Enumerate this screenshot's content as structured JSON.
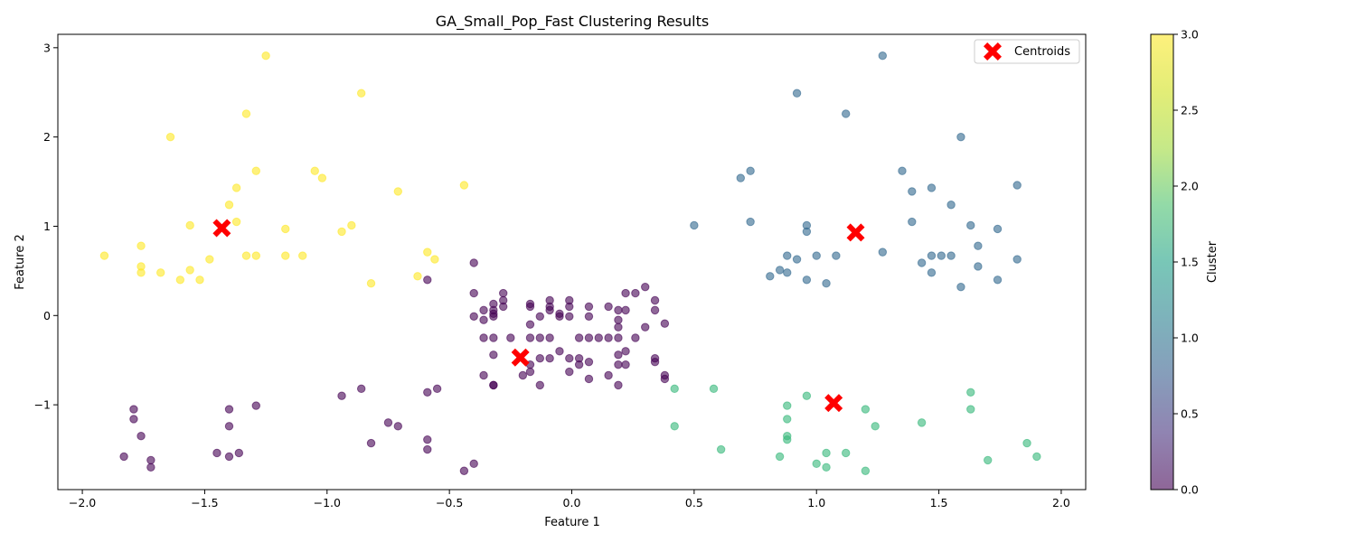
{
  "chart_data": {
    "type": "scatter",
    "title": "GA_Small_Pop_Fast Clustering Results",
    "xlabel": "Feature 1",
    "ylabel": "Feature 2",
    "xlim": [
      -2.1,
      2.1
    ],
    "ylim": [
      -1.95,
      3.15
    ],
    "xticks": [
      -2.0,
      -1.5,
      -1.0,
      -0.5,
      0.0,
      0.5,
      1.0,
      1.5,
      2.0
    ],
    "xtick_labels": [
      "−2.0",
      "−1.5",
      "−1.0",
      "−0.5",
      "0.0",
      "0.5",
      "1.0",
      "1.5",
      "2.0"
    ],
    "yticks": [
      -1,
      0,
      1,
      2,
      3
    ],
    "ytick_labels": [
      "−1",
      "0",
      "1",
      "2",
      "3"
    ],
    "grid": false,
    "legend": {
      "position": "top-right",
      "entries": [
        "Centroids"
      ]
    },
    "colorbar": {
      "label": "Cluster",
      "range": [
        0.0,
        3.0
      ],
      "ticks": [
        0.0,
        0.5,
        1.0,
        1.5,
        2.0,
        2.5,
        3.0
      ],
      "tick_labels": [
        "0.0",
        "0.5",
        "1.0",
        "1.5",
        "2.0",
        "2.5",
        "3.0"
      ],
      "colormap": "viridis"
    },
    "cluster_colors": {
      "0": "#440154",
      "1": "#31688e",
      "2": "#35b779",
      "3": "#fde725"
    },
    "centroid_color": "#ff0000",
    "centroids": [
      {
        "x": -1.43,
        "y": 0.98
      },
      {
        "x": 1.16,
        "y": 0.93
      },
      {
        "x": 1.07,
        "y": -0.98
      },
      {
        "x": -0.21,
        "y": -0.47
      }
    ],
    "series": [
      {
        "cluster": 3,
        "points": [
          [
            -1.25,
            2.91
          ],
          [
            -0.86,
            2.49
          ],
          [
            -1.33,
            2.26
          ],
          [
            -1.64,
            2.0
          ],
          [
            -1.29,
            1.62
          ],
          [
            -1.05,
            1.62
          ],
          [
            -1.02,
            1.54
          ],
          [
            -0.44,
            1.46
          ],
          [
            -1.37,
            1.43
          ],
          [
            -0.71,
            1.39
          ],
          [
            -1.4,
            1.24
          ],
          [
            -1.56,
            1.01
          ],
          [
            -1.37,
            1.05
          ],
          [
            -0.9,
            1.01
          ],
          [
            -1.17,
            0.97
          ],
          [
            -0.94,
            0.94
          ],
          [
            -1.76,
            0.78
          ],
          [
            -1.91,
            0.67
          ],
          [
            -1.33,
            0.67
          ],
          [
            -1.29,
            0.67
          ],
          [
            -1.17,
            0.67
          ],
          [
            -1.1,
            0.67
          ],
          [
            -1.48,
            0.63
          ],
          [
            -0.59,
            0.71
          ],
          [
            -0.56,
            0.63
          ],
          [
            -1.76,
            0.55
          ],
          [
            -1.76,
            0.48
          ],
          [
            -1.68,
            0.48
          ],
          [
            -1.56,
            0.51
          ],
          [
            -1.6,
            0.4
          ],
          [
            -1.52,
            0.4
          ],
          [
            -0.63,
            0.44
          ],
          [
            -0.82,
            0.36
          ]
        ]
      },
      {
        "cluster": 1,
        "points": [
          [
            1.27,
            2.91
          ],
          [
            0.92,
            2.49
          ],
          [
            1.12,
            2.26
          ],
          [
            1.59,
            2.0
          ],
          [
            1.35,
            1.62
          ],
          [
            0.73,
            1.62
          ],
          [
            0.69,
            1.54
          ],
          [
            1.82,
            1.46
          ],
          [
            1.47,
            1.43
          ],
          [
            1.39,
            1.39
          ],
          [
            1.55,
            1.24
          ],
          [
            0.5,
            1.01
          ],
          [
            0.73,
            1.05
          ],
          [
            0.96,
            1.01
          ],
          [
            1.39,
            1.05
          ],
          [
            1.63,
            1.01
          ],
          [
            0.96,
            0.94
          ],
          [
            1.74,
            0.97
          ],
          [
            1.66,
            0.78
          ],
          [
            1.27,
            0.71
          ],
          [
            0.88,
            0.67
          ],
          [
            1.0,
            0.67
          ],
          [
            1.08,
            0.67
          ],
          [
            1.47,
            0.67
          ],
          [
            1.51,
            0.67
          ],
          [
            1.55,
            0.67
          ],
          [
            0.92,
            0.63
          ],
          [
            1.43,
            0.59
          ],
          [
            1.82,
            0.63
          ],
          [
            1.66,
            0.55
          ],
          [
            0.85,
            0.51
          ],
          [
            0.88,
            0.48
          ],
          [
            1.47,
            0.48
          ],
          [
            0.81,
            0.44
          ],
          [
            0.96,
            0.4
          ],
          [
            1.74,
            0.4
          ],
          [
            1.04,
            0.36
          ],
          [
            1.59,
            0.32
          ]
        ]
      },
      {
        "cluster": 2,
        "points": [
          [
            0.42,
            -0.82
          ],
          [
            0.58,
            -0.82
          ],
          [
            1.63,
            -0.86
          ],
          [
            0.96,
            -0.9
          ],
          [
            0.88,
            -1.01
          ],
          [
            1.2,
            -1.05
          ],
          [
            1.63,
            -1.05
          ],
          [
            0.88,
            -1.16
          ],
          [
            1.43,
            -1.2
          ],
          [
            0.42,
            -1.24
          ],
          [
            1.24,
            -1.24
          ],
          [
            0.88,
            -1.35
          ],
          [
            0.88,
            -1.39
          ],
          [
            1.86,
            -1.43
          ],
          [
            0.61,
            -1.5
          ],
          [
            1.04,
            -1.54
          ],
          [
            1.12,
            -1.54
          ],
          [
            0.85,
            -1.58
          ],
          [
            1.9,
            -1.58
          ],
          [
            1.7,
            -1.62
          ],
          [
            1.0,
            -1.66
          ],
          [
            1.04,
            -1.7
          ],
          [
            1.2,
            -1.74
          ]
        ]
      },
      {
        "cluster": 0,
        "points": [
          [
            -0.4,
            0.59
          ],
          [
            -0.59,
            0.4
          ],
          [
            -0.4,
            0.25
          ],
          [
            -0.28,
            0.25
          ],
          [
            -0.28,
            0.17
          ],
          [
            -0.32,
            0.13
          ],
          [
            -0.28,
            0.1
          ],
          [
            -0.36,
            0.06
          ],
          [
            -0.32,
            0.06
          ],
          [
            -0.32,
            0.02
          ],
          [
            -0.32,
            -0.01
          ],
          [
            -0.4,
            -0.01
          ],
          [
            -0.36,
            -0.05
          ],
          [
            -0.36,
            -0.25
          ],
          [
            -0.32,
            -0.25
          ],
          [
            -0.25,
            -0.25
          ],
          [
            -0.32,
            -0.44
          ],
          [
            -0.36,
            -0.67
          ],
          [
            -0.32,
            -0.78
          ],
          [
            -0.32,
            -0.78
          ],
          [
            -0.2,
            -0.67
          ],
          [
            -0.17,
            -0.63
          ],
          [
            -0.17,
            -0.55
          ],
          [
            -0.17,
            -0.25
          ],
          [
            -0.17,
            -0.1
          ],
          [
            -0.17,
            0.1
          ],
          [
            -0.17,
            0.13
          ],
          [
            -0.13,
            -0.01
          ],
          [
            -0.13,
            -0.25
          ],
          [
            -0.13,
            -0.48
          ],
          [
            -0.13,
            -0.78
          ],
          [
            -0.09,
            -0.48
          ],
          [
            -0.09,
            -0.25
          ],
          [
            -0.09,
            0.06
          ],
          [
            -0.09,
            0.1
          ],
          [
            -0.09,
            0.17
          ],
          [
            -0.05,
            0.02
          ],
          [
            -0.05,
            -0.01
          ],
          [
            -0.05,
            -0.4
          ],
          [
            -0.01,
            -0.63
          ],
          [
            -0.01,
            -0.48
          ],
          [
            -0.01,
            -0.01
          ],
          [
            -0.01,
            0.1
          ],
          [
            -0.01,
            0.17
          ],
          [
            0.03,
            -0.25
          ],
          [
            0.03,
            -0.48
          ],
          [
            0.03,
            -0.55
          ],
          [
            0.07,
            -0.71
          ],
          [
            0.07,
            -0.52
          ],
          [
            0.07,
            -0.25
          ],
          [
            0.07,
            -0.01
          ],
          [
            0.07,
            0.1
          ],
          [
            0.11,
            -0.25
          ],
          [
            0.15,
            -0.25
          ],
          [
            0.15,
            -0.67
          ],
          [
            0.15,
            0.1
          ],
          [
            0.19,
            0.06
          ],
          [
            0.19,
            -0.05
          ],
          [
            0.19,
            -0.13
          ],
          [
            0.19,
            -0.25
          ],
          [
            0.19,
            -0.44
          ],
          [
            0.19,
            -0.55
          ],
          [
            0.19,
            -0.78
          ],
          [
            0.22,
            -0.55
          ],
          [
            0.22,
            -0.4
          ],
          [
            0.22,
            0.06
          ],
          [
            0.22,
            0.25
          ],
          [
            0.26,
            0.25
          ],
          [
            0.26,
            -0.25
          ],
          [
            0.3,
            0.32
          ],
          [
            0.3,
            -0.13
          ],
          [
            0.34,
            0.17
          ],
          [
            0.34,
            0.06
          ],
          [
            0.34,
            -0.48
          ],
          [
            0.34,
            -0.52
          ],
          [
            0.38,
            -0.09
          ],
          [
            0.38,
            -0.67
          ],
          [
            0.38,
            -0.71
          ],
          [
            -1.79,
            -1.05
          ],
          [
            -1.79,
            -1.16
          ],
          [
            -1.76,
            -1.35
          ],
          [
            -1.83,
            -1.58
          ],
          [
            -1.72,
            -1.62
          ],
          [
            -1.72,
            -1.7
          ],
          [
            -1.45,
            -1.54
          ],
          [
            -1.4,
            -1.58
          ],
          [
            -1.36,
            -1.54
          ],
          [
            -1.4,
            -1.24
          ],
          [
            -1.4,
            -1.05
          ],
          [
            -1.29,
            -1.01
          ],
          [
            -0.94,
            -0.9
          ],
          [
            -0.86,
            -0.82
          ],
          [
            -0.82,
            -1.43
          ],
          [
            -0.75,
            -1.2
          ],
          [
            -0.71,
            -1.24
          ],
          [
            -0.59,
            -0.86
          ],
          [
            -0.55,
            -0.82
          ],
          [
            -0.59,
            -1.39
          ],
          [
            -0.59,
            -1.5
          ],
          [
            -0.44,
            -1.74
          ],
          [
            -0.4,
            -1.66
          ]
        ]
      }
    ]
  }
}
